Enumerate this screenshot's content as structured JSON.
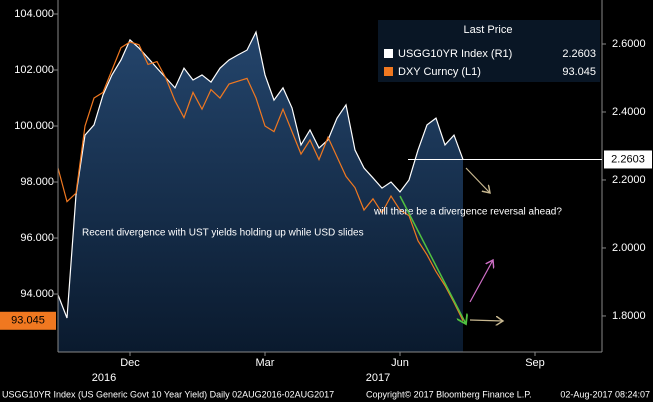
{
  "chart_data": {
    "type": "line",
    "legend_title": "Last Price",
    "annotations": [
      "Recent divergence with UST yields holding up while USD slides",
      "will there be a divergence reversal ahead?"
    ],
    "categories": [
      null,
      null,
      null,
      null,
      null,
      null,
      null,
      null,
      "Dec",
      null,
      null,
      null,
      null,
      null,
      null,
      null,
      null,
      null,
      null,
      null,
      null,
      null,
      null,
      "Mar",
      null,
      null,
      null,
      null,
      null,
      null,
      null,
      null,
      null,
      null,
      null,
      null,
      null,
      null,
      "Jun",
      null,
      null,
      null,
      null,
      null,
      null,
      null,
      null,
      null,
      null,
      null,
      null,
      null,
      null,
      "Sep",
      null,
      null,
      null,
      null,
      null,
      null,
      null
    ],
    "year_labels": [
      "2016",
      "2017"
    ],
    "series": [
      {
        "name": "USGG10YR Index  (R1)",
        "color": "#ffffff",
        "axis": "y2",
        "last_value_label": "2.2603",
        "values": [
          1.862,
          1.794,
          2.156,
          2.332,
          2.362,
          2.45,
          2.509,
          2.553,
          2.612,
          2.588,
          2.559,
          2.529,
          2.5,
          2.471,
          2.529,
          2.494,
          2.509,
          2.488,
          2.529,
          2.553,
          2.568,
          2.582,
          2.635,
          2.509,
          2.435,
          2.471,
          2.412,
          2.303,
          2.347,
          2.294,
          2.318,
          2.382,
          2.421,
          2.288,
          2.235,
          2.206,
          2.176,
          2.194,
          2.165,
          2.2,
          2.288,
          2.362,
          2.382,
          2.303,
          2.332,
          2.2603,
          null,
          null,
          null,
          null,
          null,
          null,
          null,
          null,
          null,
          null,
          null,
          null,
          null,
          null,
          null
        ]
      },
      {
        "name": "DXY Curncy  (L1)",
        "color": "#f07820",
        "axis": "y",
        "last_value_label": "93.045",
        "values": [
          98.5,
          97.3,
          97.6,
          100.0,
          101.0,
          101.2,
          102.0,
          102.8,
          103.0,
          102.9,
          102.2,
          102.3,
          101.7,
          100.9,
          100.3,
          101.2,
          100.6,
          101.3,
          101.0,
          101.5,
          101.6,
          101.7,
          101.0,
          100.0,
          99.8,
          100.6,
          99.8,
          99.0,
          99.5,
          98.8,
          99.6,
          98.9,
          98.2,
          97.8,
          97.0,
          97.4,
          96.9,
          97.5,
          97.0,
          96.8,
          95.9,
          95.4,
          94.8,
          94.3,
          93.7,
          93.045,
          null,
          null,
          null,
          null,
          null,
          null,
          null,
          null,
          null,
          null,
          null,
          null,
          null,
          null,
          null
        ]
      }
    ],
    "ylim": [
      91.93,
      104.5
    ],
    "yticks": [
      {
        "value": 94,
        "label": "94.000"
      },
      {
        "value": 96,
        "label": "96.000"
      },
      {
        "value": 98,
        "label": "98.000"
      },
      {
        "value": 100,
        "label": "100.000"
      },
      {
        "value": 102,
        "label": "102.000"
      },
      {
        "value": 104,
        "label": "104.000"
      }
    ],
    "y2lim": [
      1.694,
      2.7294
    ],
    "y2ticks": [
      {
        "value": 1.8,
        "label": "1.8000"
      },
      {
        "value": 2.0,
        "label": "2.0000"
      },
      {
        "value": 2.2,
        "label": "2.2000"
      },
      {
        "value": 2.4,
        "label": "2.4000"
      },
      {
        "value": 2.6,
        "label": "2.6000"
      }
    ],
    "grid": false,
    "footer": [
      "USGG10YR Index (US Generic Govt 10 Year Yield)  Daily 02AUG2016-02AUG2017",
      "Copyright© 2017 Bloomberg Finance L.P.",
      "02-Aug-2017 08:24:07"
    ]
  }
}
